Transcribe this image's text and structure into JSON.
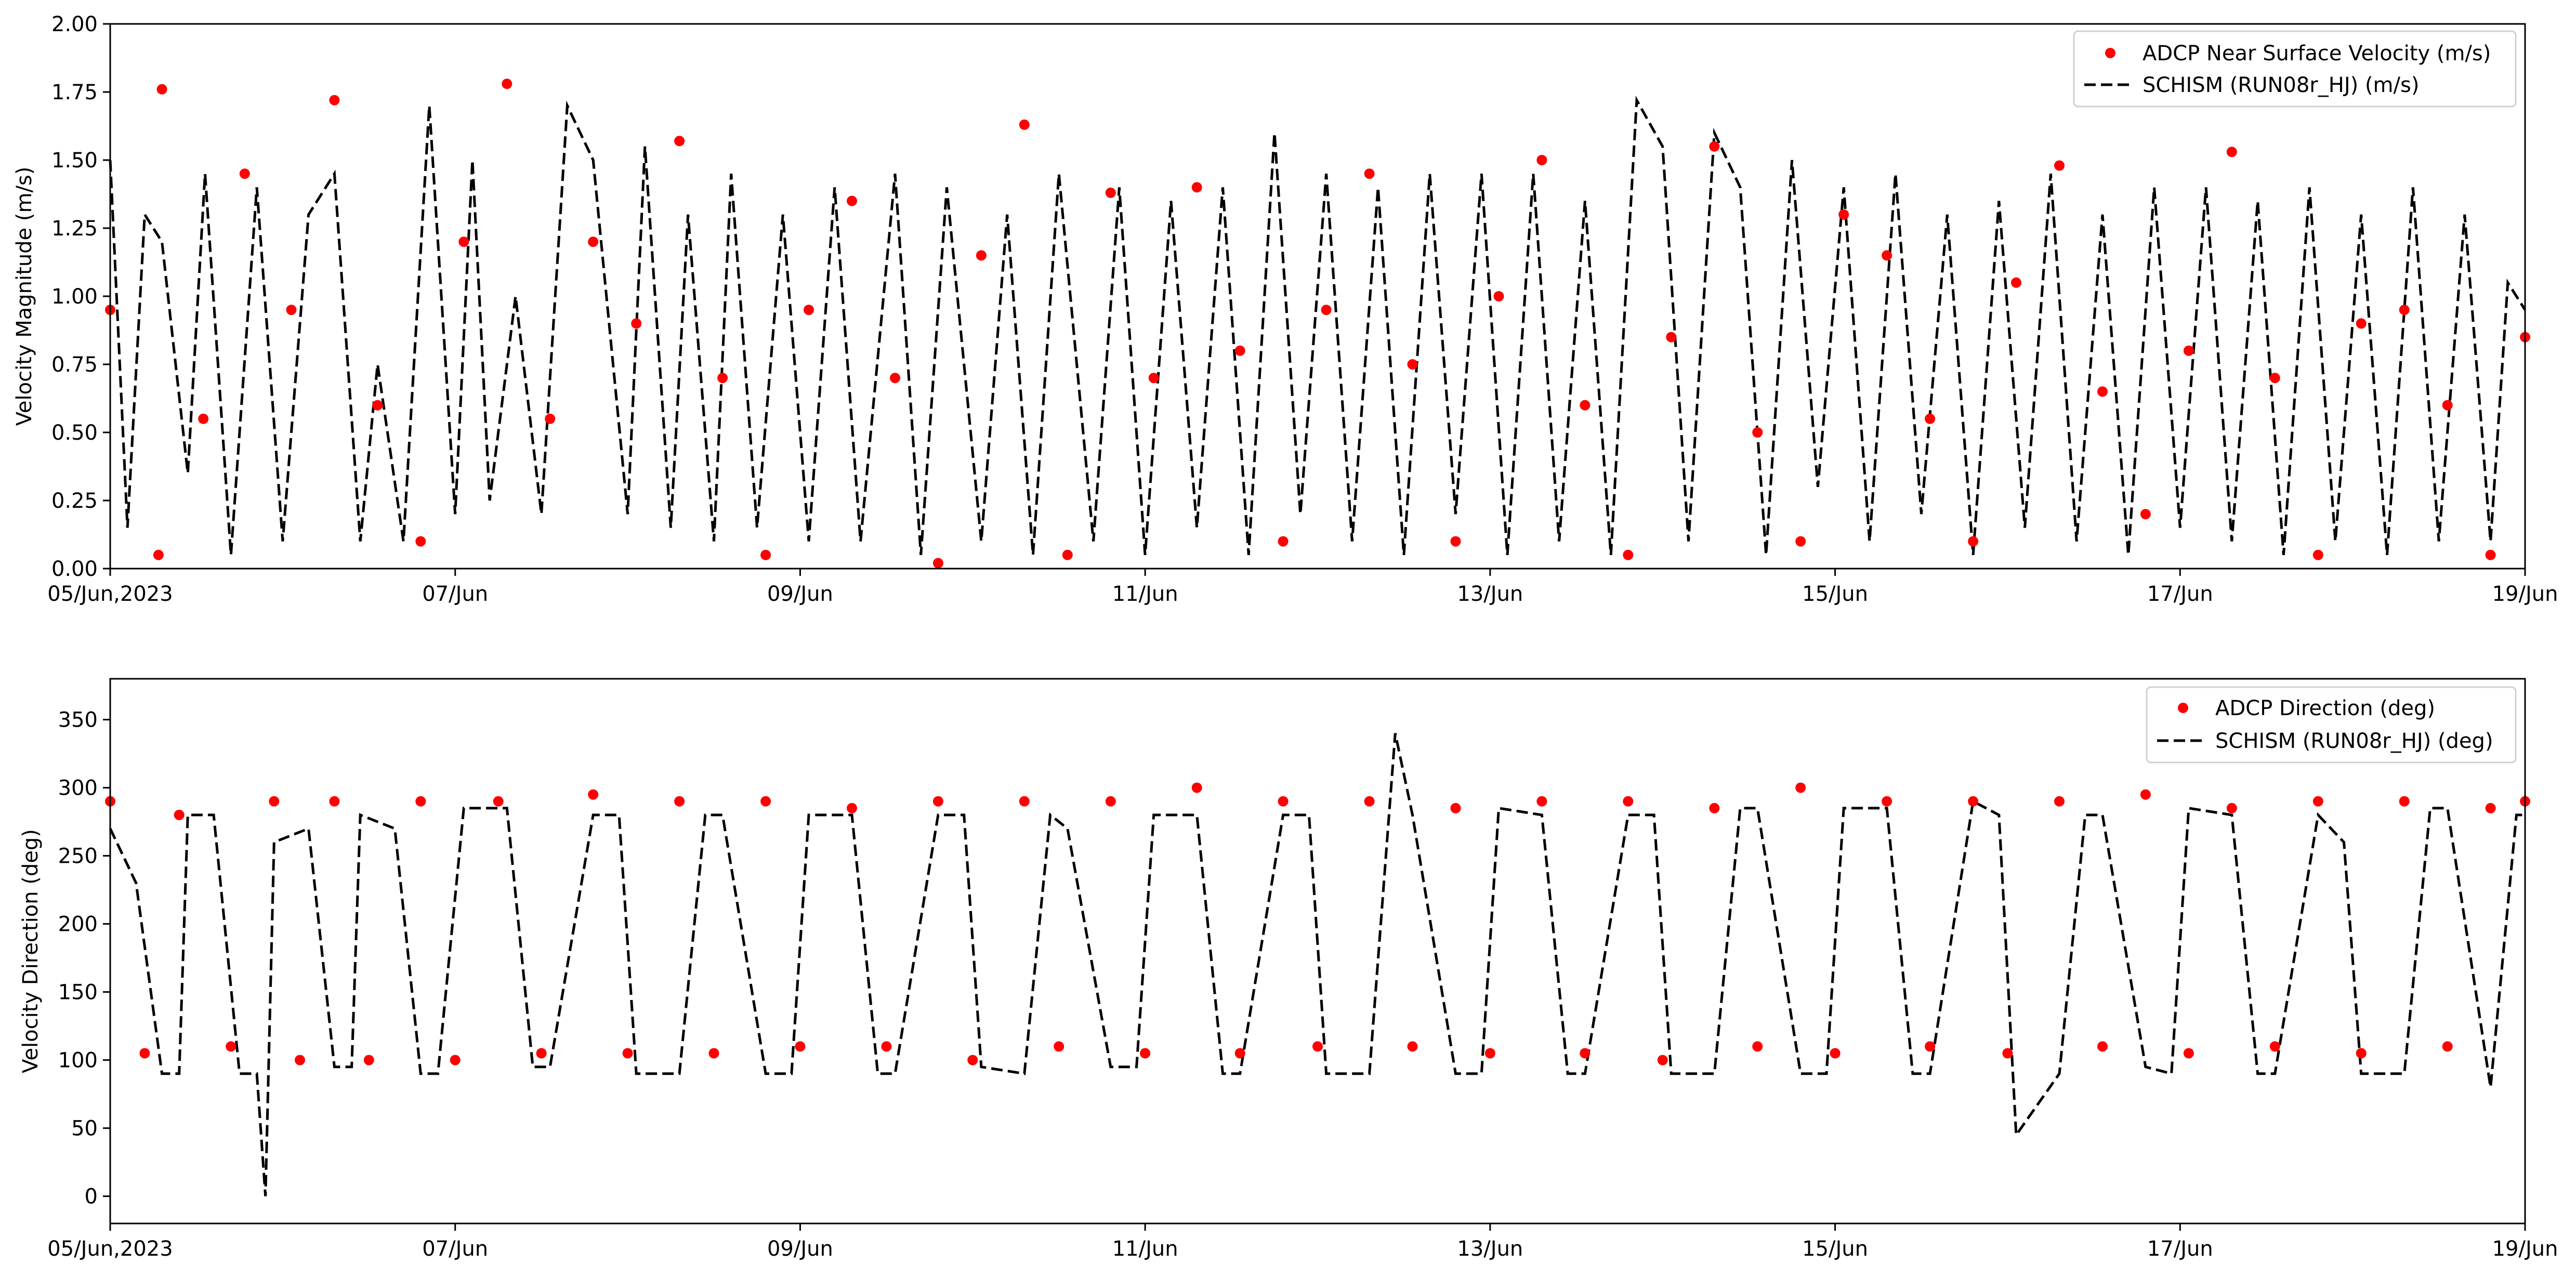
{
  "chart_data": [
    {
      "type": "scatter",
      "ylabel": "Velocity Magnitude (m/s)",
      "xlabel": "",
      "xlim": [
        0,
        14
      ],
      "ylim": [
        0,
        2.0
      ],
      "yticks": [
        0.0,
        0.25,
        0.5,
        0.75,
        1.0,
        1.25,
        1.5,
        1.75,
        2.0
      ],
      "ytick_labels": [
        "0.00",
        "0.25",
        "0.50",
        "0.75",
        "1.00",
        "1.25",
        "1.50",
        "1.75",
        "2.00"
      ],
      "xtick_labels": [
        "05/Jun,2023",
        "07/Jun",
        "09/Jun",
        "11/Jun",
        "13/Jun",
        "15/Jun",
        "17/Jun",
        "19/Jun"
      ],
      "xtick_values": [
        "2023-06-05",
        "2023-06-07",
        "2023-06-09",
        "2023-06-11",
        "2023-06-13",
        "2023-06-15",
        "2023-06-17",
        "2023-06-19"
      ],
      "grid": false,
      "legend_position": "top-right",
      "series": [
        {
          "name": "ADCP Near Surface Velocity (m/s)",
          "kind": "scatter",
          "color": "#ff0000",
          "x": [
            0.0,
            0.3,
            0.28,
            0.54,
            0.78,
            1.05,
            1.3,
            1.55,
            1.8,
            2.05,
            2.3,
            2.55,
            2.8,
            3.05,
            3.3,
            3.55,
            3.8,
            4.05,
            4.3,
            4.55,
            4.8,
            5.05,
            5.3,
            5.55,
            5.8,
            6.05,
            6.3,
            6.55,
            6.8,
            7.05,
            7.3,
            7.55,
            7.8,
            8.05,
            8.3,
            8.55,
            8.8,
            9.05,
            9.3,
            9.55,
            9.8,
            10.05,
            10.3,
            10.55,
            10.8,
            11.05,
            11.3,
            11.55,
            11.8,
            12.05,
            12.3,
            12.55,
            12.8,
            13.05,
            13.3,
            13.55,
            13.8,
            14.0
          ],
          "y": [
            0.95,
            1.76,
            0.05,
            0.55,
            1.45,
            0.95,
            1.72,
            0.6,
            0.1,
            1.2,
            1.78,
            0.55,
            1.2,
            0.9,
            1.57,
            0.7,
            0.05,
            0.95,
            1.35,
            0.7,
            0.02,
            1.15,
            1.63,
            0.05,
            1.38,
            0.7,
            1.4,
            0.8,
            0.1,
            0.95,
            1.45,
            0.75,
            0.1,
            1.0,
            1.5,
            0.6,
            0.05,
            0.85,
            1.55,
            0.5,
            0.1,
            1.3,
            1.15,
            0.55,
            0.1,
            1.05,
            1.48,
            0.65,
            0.2,
            0.8,
            1.53,
            0.7,
            0.05,
            0.9,
            0.95,
            0.6,
            0.05,
            0.85
          ]
        },
        {
          "name": "SCHISM (RUN08r_HJ) (m/s)",
          "kind": "line",
          "style": "dashed",
          "color": "#000000",
          "x": [
            0.0,
            0.1,
            0.2,
            0.3,
            0.45,
            0.55,
            0.7,
            0.85,
            1.0,
            1.15,
            1.3,
            1.45,
            1.55,
            1.7,
            1.85,
            2.0,
            2.1,
            2.2,
            2.35,
            2.5,
            2.65,
            2.8,
            3.0,
            3.1,
            3.25,
            3.35,
            3.5,
            3.6,
            3.75,
            3.9,
            4.05,
            4.2,
            4.35,
            4.55,
            4.7,
            4.85,
            5.05,
            5.2,
            5.35,
            5.5,
            5.7,
            5.85,
            6.0,
            6.15,
            6.3,
            6.45,
            6.6,
            6.75,
            6.9,
            7.05,
            7.2,
            7.35,
            7.5,
            7.65,
            7.8,
            7.95,
            8.1,
            8.25,
            8.4,
            8.55,
            8.7,
            8.85,
            9.0,
            9.15,
            9.3,
            9.45,
            9.6,
            9.75,
            9.9,
            10.05,
            10.2,
            10.35,
            10.5,
            10.65,
            10.8,
            10.95,
            11.1,
            11.25,
            11.4,
            11.55,
            11.7,
            11.85,
            12.0,
            12.15,
            12.3,
            12.45,
            12.6,
            12.75,
            12.9,
            13.05,
            13.2,
            13.35,
            13.5,
            13.65,
            13.8,
            13.9,
            14.0
          ],
          "y": [
            1.5,
            0.15,
            1.3,
            1.2,
            0.35,
            1.45,
            0.05,
            1.4,
            0.1,
            1.3,
            1.45,
            0.1,
            0.75,
            0.1,
            1.7,
            0.2,
            1.5,
            0.25,
            1.0,
            0.2,
            1.7,
            1.5,
            0.2,
            1.55,
            0.15,
            1.3,
            0.1,
            1.45,
            0.15,
            1.3,
            0.1,
            1.4,
            0.1,
            1.45,
            0.05,
            1.4,
            0.1,
            1.3,
            0.05,
            1.45,
            0.1,
            1.4,
            0.05,
            1.35,
            0.15,
            1.4,
            0.05,
            1.6,
            0.2,
            1.45,
            0.1,
            1.4,
            0.05,
            1.45,
            0.2,
            1.45,
            0.05,
            1.45,
            0.1,
            1.35,
            0.05,
            1.72,
            1.55,
            0.1,
            1.6,
            1.4,
            0.05,
            1.5,
            0.3,
            1.4,
            0.1,
            1.45,
            0.2,
            1.3,
            0.05,
            1.35,
            0.15,
            1.45,
            0.1,
            1.3,
            0.05,
            1.4,
            0.15,
            1.4,
            0.1,
            1.35,
            0.05,
            1.4,
            0.1,
            1.3,
            0.05,
            1.4,
            0.1,
            1.3,
            0.1,
            1.05,
            0.95
          ]
        }
      ]
    },
    {
      "type": "scatter",
      "ylabel": "Velocity Direction (deg)",
      "xlabel": "",
      "xlim": [
        0,
        14
      ],
      "ylim": [
        -20,
        380
      ],
      "yticks": [
        0,
        50,
        100,
        150,
        200,
        250,
        300,
        350
      ],
      "ytick_labels": [
        "0",
        "50",
        "100",
        "150",
        "200",
        "250",
        "300",
        "350"
      ],
      "xtick_labels": [
        "05/Jun,2023",
        "07/Jun",
        "09/Jun",
        "11/Jun",
        "13/Jun",
        "15/Jun",
        "17/Jun",
        "19/Jun"
      ],
      "xtick_values": [
        "2023-06-05",
        "2023-06-07",
        "2023-06-09",
        "2023-06-11",
        "2023-06-13",
        "2023-06-15",
        "2023-06-17",
        "2023-06-19"
      ],
      "grid": false,
      "legend_position": "top-right",
      "series": [
        {
          "name": "ADCP Direction (deg)",
          "kind": "scatter",
          "color": "#ff0000",
          "x": [
            0.0,
            0.2,
            0.4,
            0.7,
            0.95,
            1.1,
            1.3,
            1.5,
            1.8,
            2.0,
            2.25,
            2.5,
            2.8,
            3.0,
            3.3,
            3.5,
            3.8,
            4.0,
            4.3,
            4.5,
            4.8,
            5.0,
            5.3,
            5.5,
            5.8,
            6.0,
            6.3,
            6.55,
            6.8,
            7.0,
            7.3,
            7.55,
            7.8,
            8.0,
            8.3,
            8.55,
            8.8,
            9.0,
            9.3,
            9.55,
            9.8,
            10.0,
            10.3,
            10.55,
            10.8,
            11.0,
            11.3,
            11.55,
            11.8,
            12.05,
            12.3,
            12.55,
            12.8,
            13.05,
            13.3,
            13.55,
            13.8,
            14.0
          ],
          "y": [
            290,
            105,
            280,
            110,
            290,
            100,
            290,
            100,
            290,
            100,
            290,
            105,
            295,
            105,
            290,
            105,
            290,
            110,
            285,
            110,
            290,
            100,
            290,
            110,
            290,
            105,
            300,
            105,
            290,
            110,
            290,
            110,
            285,
            105,
            290,
            105,
            290,
            100,
            285,
            110,
            300,
            105,
            290,
            110,
            290,
            105,
            290,
            110,
            295,
            105,
            285,
            110,
            290,
            105,
            290,
            110,
            285,
            290
          ]
        },
        {
          "name": "SCHISM (RUN08r_HJ) (deg)",
          "kind": "line",
          "style": "dashed",
          "color": "#000000",
          "x": [
            0.0,
            0.15,
            0.3,
            0.4,
            0.45,
            0.6,
            0.75,
            0.85,
            0.9,
            0.95,
            1.15,
            1.3,
            1.4,
            1.45,
            1.65,
            1.8,
            1.9,
            2.05,
            2.3,
            2.45,
            2.55,
            2.8,
            2.95,
            3.05,
            3.3,
            3.45,
            3.55,
            3.8,
            3.95,
            4.05,
            4.3,
            4.45,
            4.55,
            4.8,
            4.95,
            5.05,
            5.3,
            5.45,
            5.55,
            5.8,
            5.95,
            6.05,
            6.3,
            6.45,
            6.55,
            6.8,
            6.95,
            7.05,
            7.3,
            7.45,
            7.55,
            7.8,
            7.95,
            8.05,
            8.3,
            8.45,
            8.55,
            8.8,
            8.95,
            9.05,
            9.3,
            9.45,
            9.55,
            9.8,
            9.95,
            10.05,
            10.3,
            10.45,
            10.55,
            10.8,
            10.95,
            11.05,
            11.3,
            11.45,
            11.55,
            11.8,
            11.95,
            12.05,
            12.3,
            12.45,
            12.55,
            12.8,
            12.95,
            13.05,
            13.3,
            13.45,
            13.55,
            13.8,
            13.95,
            14.0
          ],
          "y": [
            270,
            230,
            90,
            90,
            280,
            280,
            90,
            90,
            0,
            260,
            270,
            95,
            95,
            280,
            270,
            90,
            90,
            285,
            285,
            95,
            95,
            280,
            280,
            90,
            90,
            280,
            280,
            90,
            90,
            280,
            280,
            90,
            90,
            280,
            280,
            95,
            90,
            280,
            270,
            95,
            95,
            280,
            280,
            90,
            90,
            280,
            280,
            90,
            90,
            340,
            280,
            90,
            90,
            285,
            280,
            90,
            90,
            280,
            280,
            90,
            90,
            285,
            285,
            90,
            90,
            285,
            285,
            90,
            90,
            290,
            280,
            45,
            90,
            280,
            280,
            95,
            90,
            285,
            280,
            90,
            90,
            280,
            260,
            90,
            90,
            285,
            285,
            80,
            280,
            280
          ]
        }
      ]
    }
  ]
}
